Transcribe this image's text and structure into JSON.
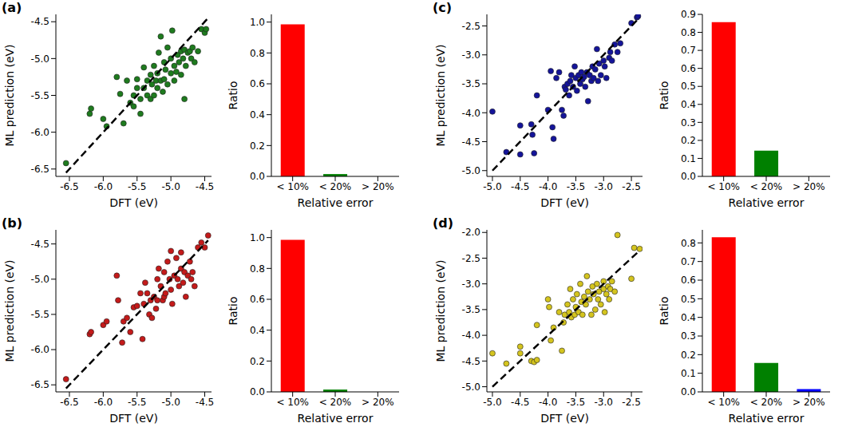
{
  "chart_data": [
    {
      "type": "scatter",
      "title": "(a)",
      "xlabel": "DFT (eV)",
      "ylabel": "ML prediction (eV)",
      "xlim": [
        -6.7,
        -4.4
      ],
      "ylim": [
        -6.6,
        -4.4
      ],
      "xticks": [
        -6.5,
        {
          "value": -6,
          "label": "-6.0"
        },
        -5.5,
        {
          "value": -5,
          "label": "-5.0"
        },
        -4.5
      ],
      "yticks": [
        -6.5,
        {
          "value": -6,
          "label": "-6.0"
        },
        -5.5,
        {
          "value": -5,
          "label": "-5.0"
        },
        -4.5
      ],
      "series": [
        {
          "type": "scatter",
          "color": "#1e7b1e",
          "marker": "circle",
          "x": [
            -6.55,
            -6.2,
            -6.18,
            -6.0,
            -5.95,
            -5.8,
            -5.75,
            -5.7,
            -5.65,
            -5.6,
            -5.55,
            -5.55,
            -5.5,
            -5.5,
            -5.45,
            -5.45,
            -5.4,
            -5.4,
            -5.35,
            -5.35,
            -5.3,
            -5.3,
            -5.28,
            -5.25,
            -5.25,
            -5.22,
            -5.2,
            -5.2,
            -5.18,
            -5.15,
            -5.15,
            -5.12,
            -5.1,
            -5.1,
            -5.08,
            -5.05,
            -5.05,
            -5.0,
            -5.0,
            -4.98,
            -4.95,
            -4.95,
            -4.92,
            -4.9,
            -4.88,
            -4.85,
            -4.85,
            -4.82,
            -4.8,
            -4.8,
            -4.78,
            -4.75,
            -4.72,
            -4.7,
            -4.68,
            -4.65,
            -4.6,
            -4.55,
            -4.5,
            -4.48
          ],
          "values": [
            -6.42,
            -5.75,
            -5.68,
            -5.82,
            -5.92,
            -5.25,
            -5.48,
            -5.88,
            -5.3,
            -5.6,
            -5.65,
            -5.5,
            -5.4,
            -5.28,
            -5.75,
            -5.55,
            -5.4,
            -5.12,
            -5.5,
            -5.3,
            -5.22,
            -5.55,
            -5.35,
            -5.1,
            -5.5,
            -5.3,
            -5.2,
            -5.4,
            -4.92,
            -4.7,
            -5.3,
            -5.45,
            -5.05,
            -5.28,
            -5.15,
            -4.85,
            -5.35,
            -5.2,
            -5.0,
            -4.62,
            -5.1,
            -5.3,
            -5.18,
            -4.95,
            -5.05,
            -4.9,
            -5.22,
            -5.0,
            -4.88,
            -5.55,
            -5.1,
            -4.92,
            -4.9,
            -5.0,
            -4.85,
            -5.05,
            -4.9,
            -4.6,
            -4.65,
            -4.6
          ]
        },
        {
          "type": "line",
          "color": "#000000",
          "line_style": "dashed",
          "x": [
            -6.55,
            -4.45
          ],
          "values": [
            -6.55,
            -4.45
          ]
        }
      ]
    },
    {
      "type": "bar",
      "xlabel": "Relative error",
      "ylabel": "Ratio",
      "categories": [
        "< 10%",
        "< 20%",
        "> 20%"
      ],
      "values": [
        0.985,
        0.015,
        0
      ],
      "colors": [
        "#ff0000",
        "#008000",
        "#0000ff"
      ],
      "ylim": [
        0,
        1.05
      ],
      "yticks": [
        {
          "value": 0,
          "label": "0.0"
        },
        0.2,
        0.4,
        0.6,
        0.8,
        {
          "value": 1,
          "label": "1.0"
        }
      ]
    },
    {
      "type": "scatter",
      "title": "(b)",
      "xlabel": "DFT (eV)",
      "ylabel": "ML prediction (eV)",
      "xlim": [
        -6.7,
        -4.4
      ],
      "ylim": [
        -6.6,
        -4.3
      ],
      "xticks": [
        -6.5,
        {
          "value": -6,
          "label": "-6.0"
        },
        -5.5,
        {
          "value": -5,
          "label": "-5.0"
        },
        -4.5
      ],
      "yticks": [
        -6.5,
        {
          "value": -6,
          "label": "-6.0"
        },
        -5.5,
        {
          "value": -5,
          "label": "-5.0"
        },
        -4.5
      ],
      "series": [
        {
          "type": "scatter",
          "color": "#c41a1a",
          "marker": "circle",
          "x": [
            -6.55,
            -6.2,
            -6.18,
            -6.0,
            -5.95,
            -5.8,
            -5.78,
            -5.72,
            -5.7,
            -5.65,
            -5.6,
            -5.55,
            -5.5,
            -5.45,
            -5.42,
            -5.4,
            -5.38,
            -5.35,
            -5.32,
            -5.3,
            -5.28,
            -5.25,
            -5.22,
            -5.2,
            -5.2,
            -5.18,
            -5.15,
            -5.12,
            -5.1,
            -5.1,
            -5.08,
            -5.05,
            -5.02,
            -5.0,
            -5.0,
            -4.98,
            -4.95,
            -4.92,
            -4.9,
            -4.88,
            -4.85,
            -4.85,
            -4.82,
            -4.8,
            -4.78,
            -4.75,
            -4.72,
            -4.7,
            -4.68,
            -4.65,
            -4.6,
            -4.55,
            -4.5,
            -4.45
          ],
          "values": [
            -6.42,
            -5.78,
            -5.75,
            -5.65,
            -5.6,
            -4.95,
            -5.3,
            -5.9,
            -5.6,
            -5.55,
            -5.75,
            -5.4,
            -5.38,
            -5.2,
            -5.85,
            -5.35,
            -5.05,
            -5.2,
            -5.5,
            -5.3,
            -5.55,
            -5.25,
            -5.42,
            -5.0,
            -5.3,
            -4.85,
            -5.1,
            -5.3,
            -4.9,
            -5.25,
            -5.2,
            -4.75,
            -5.0,
            -4.6,
            -5.15,
            -5.35,
            -4.95,
            -4.7,
            -5.0,
            -5.1,
            -4.85,
            -4.62,
            -5.05,
            -4.9,
            -5.25,
            -4.95,
            -4.75,
            -5.0,
            -4.9,
            -5.1,
            -4.55,
            -4.48,
            -4.55,
            -4.38
          ]
        },
        {
          "type": "line",
          "color": "#000000",
          "line_style": "dashed",
          "x": [
            -6.55,
            -4.45
          ],
          "values": [
            -6.55,
            -4.45
          ]
        }
      ]
    },
    {
      "type": "bar",
      "xlabel": "Relative error",
      "ylabel": "Ratio",
      "categories": [
        "< 10%",
        "< 20%",
        "> 20%"
      ],
      "values": [
        0.985,
        0.015,
        0
      ],
      "colors": [
        "#ff0000",
        "#008000",
        "#0000ff"
      ],
      "ylim": [
        0,
        1.05
      ],
      "yticks": [
        {
          "value": 0,
          "label": "0.0"
        },
        0.2,
        0.4,
        0.6,
        0.8,
        {
          "value": 1,
          "label": "1.0"
        }
      ]
    },
    {
      "type": "scatter",
      "title": "(c)",
      "xlabel": "DFT (eV)",
      "ylabel": "ML prediction (eV)",
      "xlim": [
        -5.1,
        -2.3
      ],
      "ylim": [
        -5.1,
        -2.3
      ],
      "xticks": [
        {
          "value": -5,
          "label": "-5.0"
        },
        -4.5,
        {
          "value": -4,
          "label": "-4.0"
        },
        -3.5,
        {
          "value": -3,
          "label": "-3.0"
        },
        -2.5
      ],
      "yticks": [
        {
          "value": -5,
          "label": "-5.0"
        },
        -4.5,
        {
          "value": -4,
          "label": "-4.0"
        },
        -3.5,
        {
          "value": -3,
          "label": "-3.0"
        },
        -2.5
      ],
      "series": [
        {
          "type": "scatter",
          "color": "#14149a",
          "marker": "circle",
          "x": [
            -5.0,
            -4.75,
            -4.5,
            -4.5,
            -4.3,
            -4.28,
            -4.25,
            -4.2,
            -4.0,
            -3.95,
            -3.92,
            -3.9,
            -3.85,
            -3.8,
            -3.75,
            -3.72,
            -3.7,
            -3.68,
            -3.65,
            -3.62,
            -3.6,
            -3.58,
            -3.55,
            -3.52,
            -3.5,
            -3.48,
            -3.45,
            -3.42,
            -3.4,
            -3.38,
            -3.35,
            -3.33,
            -3.3,
            -3.28,
            -3.25,
            -3.22,
            -3.2,
            -3.18,
            -3.15,
            -3.12,
            -3.1,
            -3.08,
            -3.05,
            -3.0,
            -2.98,
            -2.95,
            -2.9,
            -2.88,
            -2.85,
            -2.8,
            -2.75,
            -2.7,
            -2.5,
            -2.4,
            -2.38
          ],
          "values": [
            -3.98,
            -4.68,
            -4.72,
            -4.22,
            -4.2,
            -4.38,
            -4.7,
            -3.7,
            -3.95,
            -3.28,
            -4.25,
            -4.45,
            -3.4,
            -3.3,
            -3.95,
            -4.05,
            -3.55,
            -3.6,
            -3.5,
            -3.7,
            -3.45,
            -3.35,
            -3.55,
            -3.2,
            -3.4,
            -3.62,
            -3.35,
            -3.5,
            -3.3,
            -3.42,
            -3.38,
            -3.55,
            -3.3,
            -3.8,
            -3.35,
            -3.45,
            -3.2,
            -3.4,
            -3.25,
            -2.9,
            -3.45,
            -3.15,
            -3.35,
            -3.1,
            -3.2,
            -3.4,
            -3.05,
            -2.95,
            -3.1,
            -2.82,
            -2.95,
            -2.8,
            -2.45,
            -2.35,
            -2.33
          ]
        },
        {
          "type": "line",
          "color": "#000000",
          "line_style": "dashed",
          "x": [
            -5.0,
            -2.35
          ],
          "values": [
            -5.0,
            -2.35
          ]
        }
      ]
    },
    {
      "type": "bar",
      "xlabel": "Relative error",
      "ylabel": "Ratio",
      "categories": [
        "< 10%",
        "< 20%",
        "> 20%"
      ],
      "values": [
        0.857,
        0.143,
        0
      ],
      "colors": [
        "#ff0000",
        "#008000",
        "#0000ff"
      ],
      "ylim": [
        0,
        0.9
      ],
      "yticks": [
        {
          "value": 0,
          "label": "0.0"
        },
        0.1,
        0.2,
        0.3,
        0.4,
        0.5,
        0.6,
        0.7,
        0.8,
        0.9
      ]
    },
    {
      "type": "scatter",
      "title": "(d)",
      "xlabel": "DFT (eV)",
      "ylabel": "ML prediction (eV)",
      "xlim": [
        -5.1,
        -2.3
      ],
      "ylim": [
        -5.1,
        -1.95
      ],
      "xticks": [
        {
          "value": -5,
          "label": "-5.0"
        },
        -4.5,
        {
          "value": -4,
          "label": "-4.0"
        },
        -3.5,
        {
          "value": -3,
          "label": "-3.0"
        },
        -2.5
      ],
      "yticks": [
        {
          "value": -5,
          "label": "-5.0"
        },
        -4.5,
        {
          "value": -4,
          "label": "-4.0"
        },
        -3.5,
        {
          "value": -3,
          "label": "-3.0"
        },
        -2.5,
        {
          "value": -2,
          "label": "-2.0"
        }
      ],
      "series": [
        {
          "type": "scatter",
          "color": "#d4c41e",
          "marker": "circle",
          "x": [
            -5.0,
            -4.75,
            -4.5,
            -4.5,
            -4.3,
            -4.25,
            -4.2,
            -4.2,
            -4.0,
            -3.98,
            -3.95,
            -3.9,
            -3.8,
            -3.75,
            -3.72,
            -3.7,
            -3.65,
            -3.62,
            -3.6,
            -3.58,
            -3.55,
            -3.52,
            -3.5,
            -3.48,
            -3.45,
            -3.42,
            -3.4,
            -3.38,
            -3.35,
            -3.32,
            -3.3,
            -3.28,
            -3.25,
            -3.22,
            -3.2,
            -3.18,
            -3.15,
            -3.12,
            -3.1,
            -3.08,
            -3.05,
            -3.0,
            -3.0,
            -2.98,
            -2.95,
            -2.92,
            -2.9,
            -2.88,
            -2.85,
            -2.8,
            -2.75,
            -2.5,
            -2.45,
            -2.35
          ],
          "values": [
            -4.35,
            -4.55,
            -4.22,
            -4.35,
            -4.5,
            -4.52,
            -3.8,
            -4.48,
            -3.3,
            -3.45,
            -4.1,
            -3.85,
            -3.55,
            -4.3,
            -3.75,
            -3.6,
            -3.4,
            -3.55,
            -3.1,
            -3.65,
            -3.3,
            -3.6,
            -3.45,
            -3.2,
            -3.55,
            -3.0,
            -3.35,
            -3.6,
            -3.25,
            -3.4,
            -2.85,
            -3.15,
            -3.3,
            -3.6,
            -3.05,
            -3.2,
            -3.5,
            -3.0,
            -3.3,
            -3.15,
            -3.4,
            -2.95,
            -3.1,
            -3.55,
            -3.2,
            -3.05,
            -3.3,
            -3.1,
            -2.95,
            -3.15,
            -2.05,
            -2.9,
            -2.3,
            -2.32
          ]
        },
        {
          "type": "line",
          "color": "#000000",
          "line_style": "dashed",
          "x": [
            -5.0,
            -2.35
          ],
          "values": [
            -5.0,
            -2.35
          ]
        }
      ]
    },
    {
      "type": "bar",
      "xlabel": "Relative error",
      "ylabel": "Ratio",
      "categories": [
        "< 10%",
        "< 20%",
        "> 20%"
      ],
      "values": [
        0.83,
        0.155,
        0.015
      ],
      "colors": [
        "#ff0000",
        "#008000",
        "#0000ff"
      ],
      "ylim": [
        0,
        0.87
      ],
      "yticks": [
        {
          "value": 0,
          "label": "0.0"
        },
        0.1,
        0.2,
        0.3,
        0.4,
        0.5,
        0.6,
        0.7,
        0.8
      ]
    }
  ]
}
